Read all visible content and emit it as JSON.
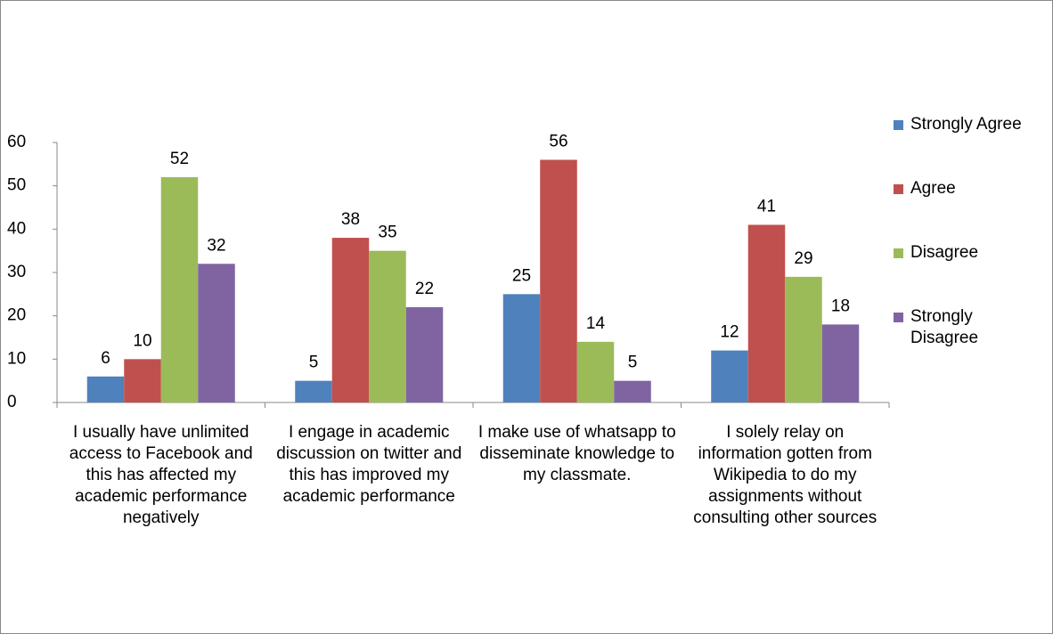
{
  "chart_data": {
    "type": "bar",
    "categories": [
      "I usually have unlimited access to Facebook  and this has affected my academic performance negatively",
      "I engage in academic discussion on twitter and this has improved my academic performance",
      "I make use of whatsapp to disseminate knowledge to my classmate.",
      "I solely relay on information gotten from Wikipedia to do my assignments without consulting other sources"
    ],
    "series": [
      {
        "name": "Strongly Agree",
        "color": "#4f81bd",
        "values": [
          6,
          5,
          25,
          12
        ]
      },
      {
        "name": "Agree",
        "color": "#c0504d",
        "values": [
          10,
          38,
          56,
          41
        ]
      },
      {
        "name": "Disagree",
        "color": "#9bbb59",
        "values": [
          52,
          35,
          14,
          29
        ]
      },
      {
        "name": "Strongly Disagree",
        "color": "#8064a2",
        "values": [
          32,
          22,
          5,
          18
        ]
      }
    ],
    "ylim": [
      0,
      60
    ],
    "yticks": [
      0,
      10,
      20,
      30,
      40,
      50,
      60
    ],
    "grid": false,
    "legend": "right"
  }
}
